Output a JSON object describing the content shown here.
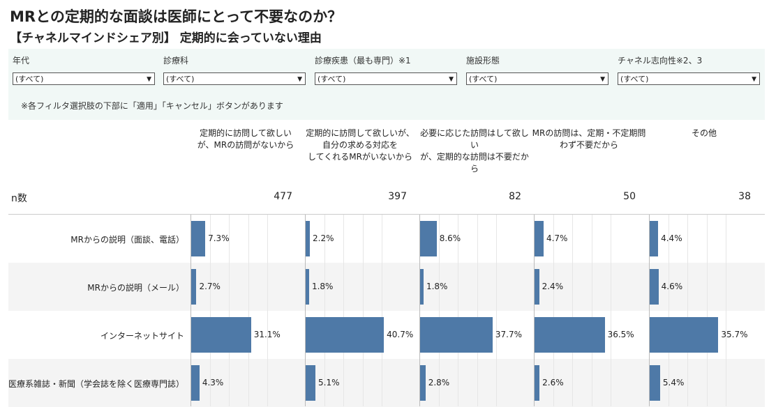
{
  "title": "MRとの定期的な面談は医師にとって不要なのか？",
  "subtitle": "【チャネルマインドシェア別】 定期的に会っていない理由",
  "filters": [
    {
      "label": "年代",
      "value": "(すべて)"
    },
    {
      "label": "診療科",
      "value": "(すべて)"
    },
    {
      "label": "診療疾患（最も専門）※1",
      "value": "(すべて)"
    },
    {
      "label": "施設形態",
      "value": "(すべて)"
    },
    {
      "label": "チャネル志向性※2、3",
      "value": "(すべて)"
    }
  ],
  "filter_note": "※各フィルタ選択肢の下部に「適用」「キャンセル」ボタンがあります",
  "colors": {
    "bar": "#4e79a7",
    "filter_bg": "#f1f8f6",
    "alt_row": "#f4f4f4"
  },
  "chart_data": {
    "type": "bar",
    "orientation": "horizontal",
    "n_label": "n数",
    "columns": [
      {
        "name": "定期的に訪問して欲しいが、MRの訪問がないから",
        "lines": [
          "定期的に訪問して欲しい",
          "が、MRの訪問がないから"
        ],
        "n": 477
      },
      {
        "name": "定期的に訪問して欲しいが、自分の求める対応をしてくれるMRがいないから",
        "lines": [
          "定期的に訪問して欲しいが、",
          "自分の求める対応を",
          "してくれるMRがいないから"
        ],
        "n": 397
      },
      {
        "name": "必要に応じた訪問はして欲しいが、定期的な訪問は不要だから",
        "lines": [
          "必要に応じた訪問はして欲しい",
          "が、定期的な訪問は不要だから"
        ],
        "n": 82
      },
      {
        "name": "MRの訪問は、定期・不定期問わず不要だから",
        "lines": [
          "MRの訪問は、定期・不定期問",
          "わず不要だから"
        ],
        "n": 50
      },
      {
        "name": "その他",
        "lines": [
          "その他"
        ],
        "n": 38
      }
    ],
    "categories": [
      "MRからの説明（面談、電話）",
      "MRからの説明（メール）",
      "インターネットサイト",
      "医療系雑誌・新聞（学会誌を除く医療専門誌）"
    ],
    "values": [
      [
        7.3,
        2.2,
        8.6,
        4.7,
        4.4
      ],
      [
        2.7,
        1.8,
        1.8,
        2.4,
        4.6
      ],
      [
        31.1,
        40.7,
        37.7,
        36.5,
        35.7
      ],
      [
        4.3,
        5.1,
        2.8,
        2.6,
        5.4
      ]
    ],
    "value_labels": [
      [
        "7.3%",
        "2.2%",
        "8.6%",
        "4.7%",
        "4.4%"
      ],
      [
        "2.7%",
        "1.8%",
        "1.8%",
        "2.4%",
        "4.6%"
      ],
      [
        "31.1%",
        "40.7%",
        "37.7%",
        "36.5%",
        "35.7%"
      ],
      [
        "4.3%",
        "5.1%",
        "2.8%",
        "2.6%",
        "5.4%"
      ]
    ],
    "xlim": [
      0,
      45
    ],
    "grid": true
  }
}
